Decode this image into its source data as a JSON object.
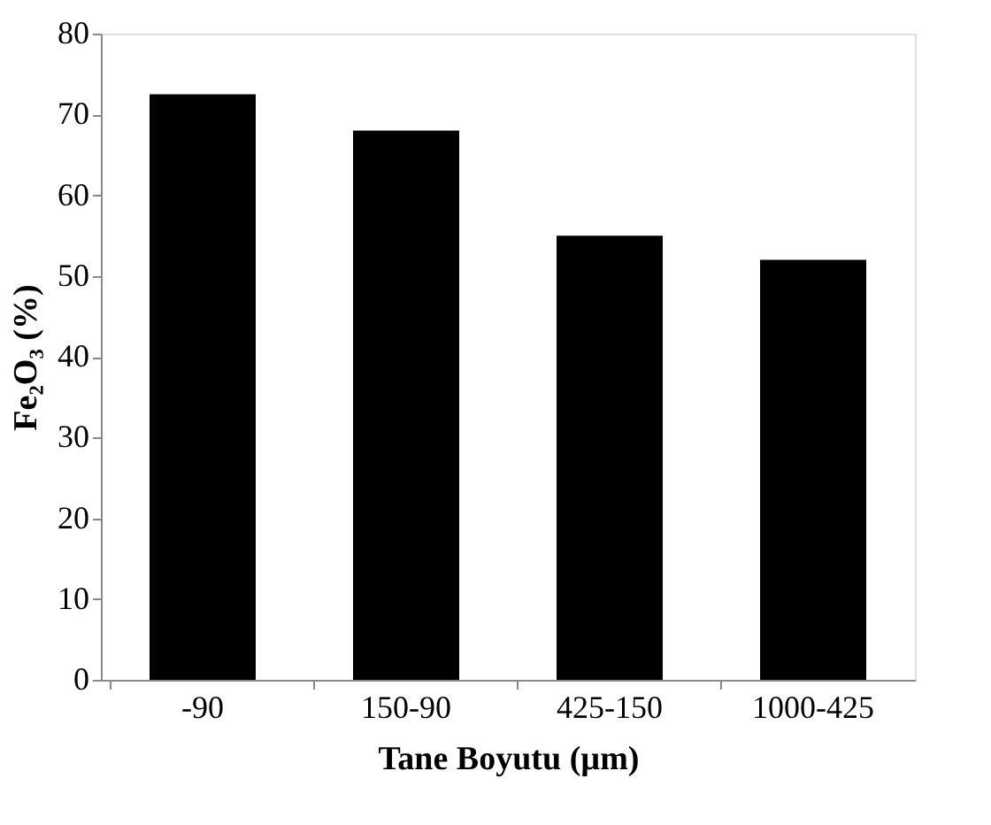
{
  "chart_data": {
    "type": "bar",
    "xlabel": "Tane Boyutu (µm)",
    "ylabel": "Fe₂O₃ (%)",
    "categories": [
      "-90",
      "150-90",
      "425-150",
      "1000-425"
    ],
    "values": [
      72.5,
      68,
      55,
      52
    ],
    "color": "#000000",
    "ylim": [
      0,
      80
    ],
    "yticks": [
      0,
      10,
      20,
      30,
      40,
      50,
      60,
      70,
      80
    ],
    "grid": false
  }
}
